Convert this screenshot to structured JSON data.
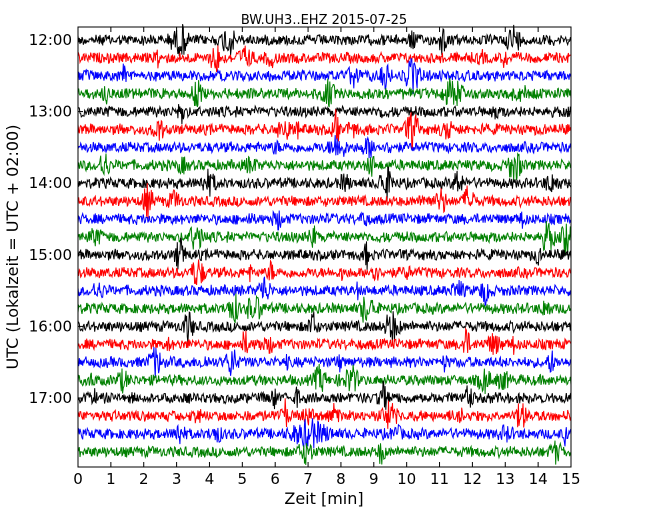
{
  "chart_data": {
    "type": "line",
    "title": "BW.UH3..EHZ 2015-07-25",
    "xlabel": "Zeit  [min]",
    "ylabel": "UTC (Lokalzeit = UTC + 02:00)",
    "xlim": [
      0,
      15
    ],
    "x_ticks": [
      "0",
      "1",
      "2",
      "3",
      "4",
      "5",
      "6",
      "7",
      "8",
      "9",
      "10",
      "11",
      "12",
      "13",
      "14",
      "15"
    ],
    "y_ticks": [
      "12:00",
      "13:00",
      "14:00",
      "15:00",
      "16:00",
      "17:00"
    ],
    "trace_interval_minutes": 15,
    "first_trace": "12:00",
    "trace_count": 24,
    "trace_colors": [
      "#000000",
      "#ff0000",
      "#0000ff",
      "#008000"
    ],
    "grid": false,
    "legend": "none"
  }
}
